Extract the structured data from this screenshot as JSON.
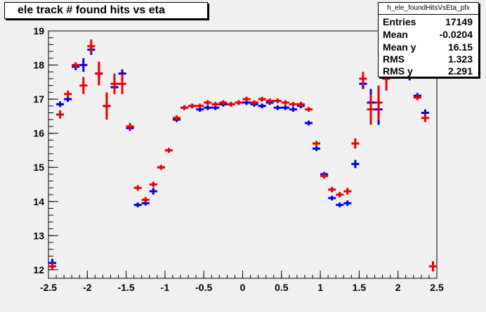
{
  "title": "ele track # found hits vs eta",
  "stats": {
    "name": "h_ele_foundHitsVsEta_pfx",
    "rows": [
      {
        "key": "Entries",
        "value": "17149"
      },
      {
        "key": "Mean",
        "value": "-0.0204"
      },
      {
        "key": "Mean y",
        "value": "16.15"
      },
      {
        "key": "RMS",
        "value": "1.323"
      },
      {
        "key": "RMS y",
        "value": "2.291"
      }
    ]
  },
  "colors": {
    "background": "#f0f0f0",
    "series_blue": "#0000ee",
    "series_red": "#ee0000"
  },
  "chart_data": {
    "type": "scatter",
    "title": "ele track # found hits vs eta",
    "xlim": [
      -2.5,
      2.5
    ],
    "ylim": [
      11.75,
      19
    ],
    "x_ticks": [
      "-2.5",
      "-2",
      "-1.5",
      "-1",
      "-0.5",
      "0",
      "0.5",
      "1",
      "1.5",
      "2",
      "2.5"
    ],
    "y_ticks": [
      "12",
      "13",
      "14",
      "15",
      "16",
      "17",
      "18",
      "19"
    ],
    "grid": false,
    "legend": "none",
    "series": [
      {
        "color": "#0000ee",
        "points": [
          {
            "x": -2.45,
            "y": 12.2,
            "err": 0.12
          },
          {
            "x": -2.35,
            "y": 16.85,
            "err": 0.08
          },
          {
            "x": -2.25,
            "y": 17.0,
            "err": 0.08
          },
          {
            "x": -2.15,
            "y": 17.95,
            "err": 0.1
          },
          {
            "x": -2.05,
            "y": 18.0,
            "err": 0.2
          },
          {
            "x": -1.95,
            "y": 18.45,
            "err": 0.15
          },
          {
            "x": -1.85,
            "y": 17.75,
            "err": 0.3
          },
          {
            "x": -1.75,
            "y": 16.8,
            "err": 0.08
          },
          {
            "x": -1.65,
            "y": 17.35,
            "err": 0.15
          },
          {
            "x": -1.55,
            "y": 17.75,
            "err": 0.12
          },
          {
            "x": -1.45,
            "y": 16.15,
            "err": 0.08
          },
          {
            "x": -1.35,
            "y": 13.9,
            "err": 0.06
          },
          {
            "x": -1.25,
            "y": 13.95,
            "err": 0.06
          },
          {
            "x": -1.15,
            "y": 14.3,
            "err": 0.1
          },
          {
            "x": -1.05,
            "y": 15.0,
            "err": 0.06
          },
          {
            "x": -0.95,
            "y": 15.5,
            "err": 0.05
          },
          {
            "x": -0.85,
            "y": 16.4,
            "err": 0.05
          },
          {
            "x": -0.75,
            "y": 16.75,
            "err": 0.04
          },
          {
            "x": -0.65,
            "y": 16.8,
            "err": 0.04
          },
          {
            "x": -0.55,
            "y": 16.7,
            "err": 0.05
          },
          {
            "x": -0.45,
            "y": 16.75,
            "err": 0.04
          },
          {
            "x": -0.35,
            "y": 16.75,
            "err": 0.04
          },
          {
            "x": -0.25,
            "y": 16.85,
            "err": 0.04
          },
          {
            "x": -0.15,
            "y": 16.85,
            "err": 0.04
          },
          {
            "x": -0.05,
            "y": 16.9,
            "err": 0.04
          },
          {
            "x": 0.05,
            "y": 16.9,
            "err": 0.04
          },
          {
            "x": 0.15,
            "y": 16.85,
            "err": 0.04
          },
          {
            "x": 0.25,
            "y": 16.8,
            "err": 0.04
          },
          {
            "x": 0.35,
            "y": 16.9,
            "err": 0.04
          },
          {
            "x": 0.45,
            "y": 16.75,
            "err": 0.04
          },
          {
            "x": 0.55,
            "y": 16.75,
            "err": 0.04
          },
          {
            "x": 0.65,
            "y": 16.7,
            "err": 0.04
          },
          {
            "x": 0.75,
            "y": 16.8,
            "err": 0.05
          },
          {
            "x": 0.85,
            "y": 16.3,
            "err": 0.06
          },
          {
            "x": 0.95,
            "y": 15.55,
            "err": 0.06
          },
          {
            "x": 1.05,
            "y": 14.8,
            "err": 0.07
          },
          {
            "x": 1.15,
            "y": 14.1,
            "err": 0.07
          },
          {
            "x": 1.25,
            "y": 13.9,
            "err": 0.07
          },
          {
            "x": 1.35,
            "y": 13.95,
            "err": 0.08
          },
          {
            "x": 1.45,
            "y": 15.1,
            "err": 0.12
          },
          {
            "x": 1.55,
            "y": 17.45,
            "err": 0.15
          },
          {
            "x": 1.65,
            "y": 16.9,
            "err": 0.4
          },
          {
            "x": 1.75,
            "y": 16.7,
            "err": 0.45
          },
          {
            "x": 1.85,
            "y": 17.75,
            "err": 0.2
          },
          {
            "x": 1.95,
            "y": 17.85,
            "err": 0.2
          },
          {
            "x": 2.05,
            "y": 17.9,
            "err": 0.15
          },
          {
            "x": 2.15,
            "y": 17.7,
            "err": 0.15
          },
          {
            "x": 2.25,
            "y": 17.1,
            "err": 0.08
          },
          {
            "x": 2.35,
            "y": 16.6,
            "err": 0.1
          },
          {
            "x": 2.45,
            "y": 12.1,
            "err": 0.12
          }
        ]
      },
      {
        "color": "#ee0000",
        "points": [
          {
            "x": -2.45,
            "y": 12.1,
            "err": 0.1
          },
          {
            "x": -2.35,
            "y": 16.55,
            "err": 0.12
          },
          {
            "x": -2.25,
            "y": 17.15,
            "err": 0.1
          },
          {
            "x": -2.15,
            "y": 18.0,
            "err": 0.08
          },
          {
            "x": -2.05,
            "y": 17.4,
            "err": 0.25
          },
          {
            "x": -1.95,
            "y": 18.55,
            "err": 0.2
          },
          {
            "x": -1.85,
            "y": 17.75,
            "err": 0.35
          },
          {
            "x": -1.75,
            "y": 16.8,
            "err": 0.4
          },
          {
            "x": -1.65,
            "y": 17.45,
            "err": 0.3
          },
          {
            "x": -1.55,
            "y": 17.45,
            "err": 0.3
          },
          {
            "x": -1.45,
            "y": 16.2,
            "err": 0.1
          },
          {
            "x": -1.35,
            "y": 14.4,
            "err": 0.08
          },
          {
            "x": -1.25,
            "y": 14.05,
            "err": 0.08
          },
          {
            "x": -1.15,
            "y": 14.5,
            "err": 0.08
          },
          {
            "x": -1.05,
            "y": 15.0,
            "err": 0.06
          },
          {
            "x": -0.95,
            "y": 15.5,
            "err": 0.06
          },
          {
            "x": -0.85,
            "y": 16.45,
            "err": 0.05
          },
          {
            "x": -0.75,
            "y": 16.75,
            "err": 0.05
          },
          {
            "x": -0.65,
            "y": 16.8,
            "err": 0.05
          },
          {
            "x": -0.55,
            "y": 16.8,
            "err": 0.05
          },
          {
            "x": -0.45,
            "y": 16.9,
            "err": 0.05
          },
          {
            "x": -0.35,
            "y": 16.85,
            "err": 0.05
          },
          {
            "x": -0.25,
            "y": 16.9,
            "err": 0.05
          },
          {
            "x": -0.15,
            "y": 16.85,
            "err": 0.05
          },
          {
            "x": -0.05,
            "y": 16.9,
            "err": 0.05
          },
          {
            "x": 0.05,
            "y": 17.0,
            "err": 0.05
          },
          {
            "x": 0.15,
            "y": 16.9,
            "err": 0.05
          },
          {
            "x": 0.25,
            "y": 17.0,
            "err": 0.05
          },
          {
            "x": 0.35,
            "y": 16.95,
            "err": 0.05
          },
          {
            "x": 0.45,
            "y": 16.95,
            "err": 0.05
          },
          {
            "x": 0.55,
            "y": 16.9,
            "err": 0.05
          },
          {
            "x": 0.65,
            "y": 16.85,
            "err": 0.05
          },
          {
            "x": 0.75,
            "y": 16.85,
            "err": 0.05
          },
          {
            "x": 0.85,
            "y": 16.7,
            "err": 0.05
          },
          {
            "x": 0.95,
            "y": 15.7,
            "err": 0.06
          },
          {
            "x": 1.05,
            "y": 14.75,
            "err": 0.08
          },
          {
            "x": 1.15,
            "y": 14.35,
            "err": 0.08
          },
          {
            "x": 1.25,
            "y": 14.2,
            "err": 0.08
          },
          {
            "x": 1.35,
            "y": 14.3,
            "err": 0.1
          },
          {
            "x": 1.45,
            "y": 15.7,
            "err": 0.15
          },
          {
            "x": 1.55,
            "y": 17.6,
            "err": 0.2
          },
          {
            "x": 1.65,
            "y": 16.7,
            "err": 0.45
          },
          {
            "x": 1.75,
            "y": 16.9,
            "err": 0.5
          },
          {
            "x": 1.85,
            "y": 17.6,
            "err": 0.35
          },
          {
            "x": 1.95,
            "y": 18.0,
            "err": 0.3
          },
          {
            "x": 2.05,
            "y": 18.0,
            "err": 0.25
          },
          {
            "x": 2.15,
            "y": 17.95,
            "err": 0.2
          },
          {
            "x": 2.25,
            "y": 17.05,
            "err": 0.08
          },
          {
            "x": 2.35,
            "y": 16.45,
            "err": 0.12
          },
          {
            "x": 2.45,
            "y": 12.1,
            "err": 0.15
          }
        ]
      }
    ]
  }
}
